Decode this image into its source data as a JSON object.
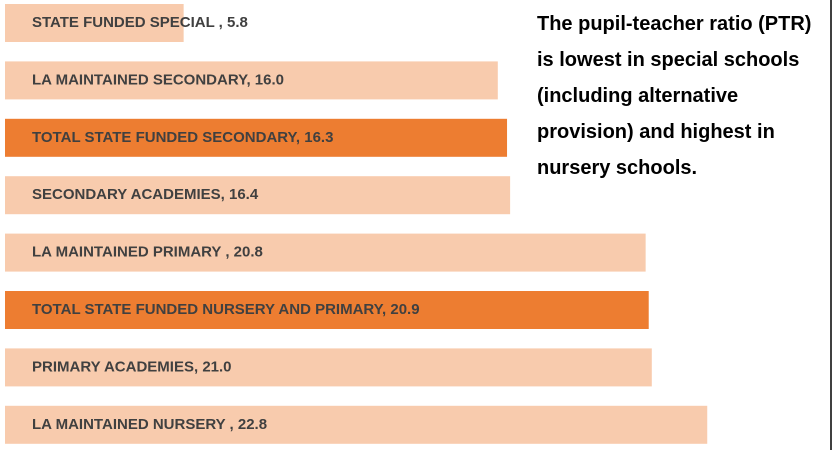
{
  "chart_data": {
    "type": "bar",
    "orientation": "horizontal",
    "categories": [
      "STATE FUNDED SPECIAL ,",
      "LA MAINTAINED SECONDARY,",
      "TOTAL STATE FUNDED SECONDARY,",
      "SECONDARY ACADEMIES,",
      "LA MAINTAINED PRIMARY ,",
      "TOTAL STATE FUNDED NURSERY AND PRIMARY,",
      "PRIMARY ACADEMIES,",
      "LA MAINTAINED NURSERY ,"
    ],
    "values": [
      5.8,
      16.0,
      16.3,
      16.4,
      20.8,
      20.9,
      21.0,
      22.8
    ],
    "value_labels": [
      "5.8",
      "16.0",
      "16.3",
      "16.4",
      "20.8",
      "20.9",
      "21.0",
      "22.8"
    ],
    "colors": [
      "#f8cbad",
      "#f8cbad",
      "#ed7d31",
      "#f8cbad",
      "#f8cbad",
      "#ed7d31",
      "#f8cbad",
      "#f8cbad"
    ],
    "annotation": "The pupil-teacher ratio (PTR) is lowest in special schools (including alternative provision) and highest in nursery schools."
  }
}
